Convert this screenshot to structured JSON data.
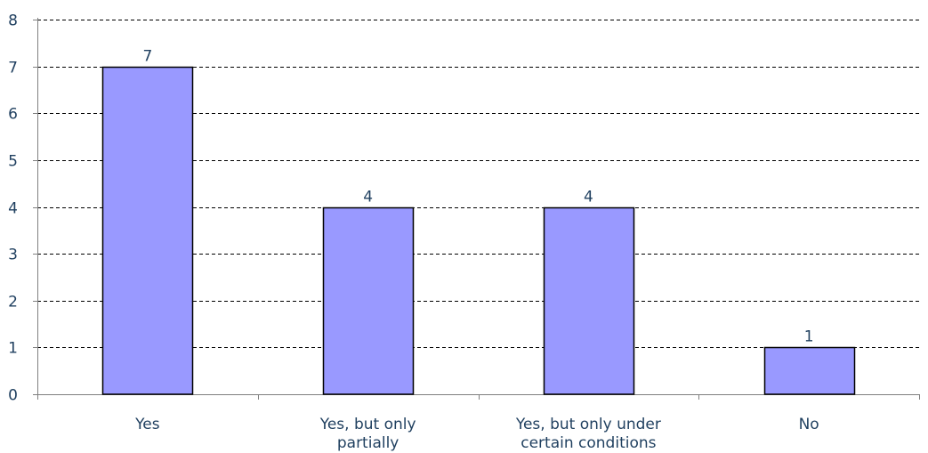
{
  "chart_data": {
    "type": "bar",
    "categories": [
      [
        "Yes"
      ],
      [
        "Yes, but only",
        "partially"
      ],
      [
        "Yes, but only under",
        "certain conditions"
      ],
      [
        "No"
      ]
    ],
    "values": [
      7,
      4,
      4,
      1
    ],
    "data_labels": [
      "7",
      "4",
      "4",
      "1"
    ],
    "ylim": [
      0,
      8
    ],
    "yticks": [
      "0",
      "1",
      "2",
      "3",
      "4",
      "5",
      "6",
      "7",
      "8"
    ],
    "grid": "dashed-horizontal",
    "title": "",
    "xlabel": "",
    "ylabel": "",
    "colors": {
      "bar_fill": "#9999ff",
      "bar_stroke": "#000000",
      "text": "#1f3f5f",
      "grid": "#000000",
      "axis": "#808080"
    }
  }
}
